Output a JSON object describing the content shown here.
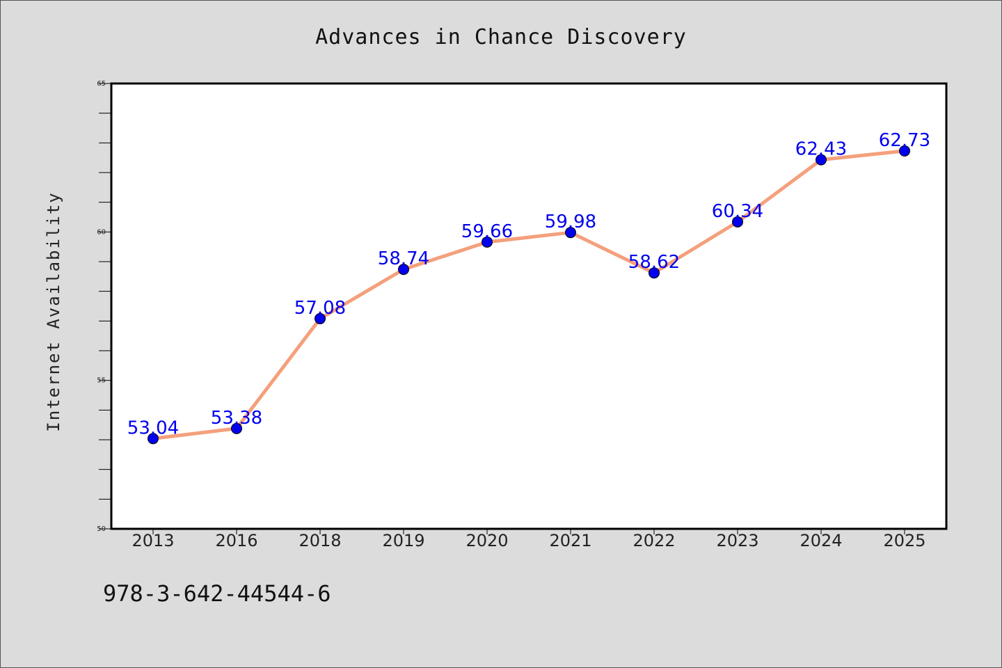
{
  "chart_data": {
    "type": "line",
    "title": "Advances in Chance Discovery",
    "xlabel": "",
    "ylabel": "Internet Availability",
    "categories": [
      "2013",
      "2016",
      "2018",
      "2019",
      "2020",
      "2021",
      "2022",
      "2023",
      "2024",
      "2025"
    ],
    "series": [
      {
        "values": [
          53.04,
          53.38,
          57.08,
          58.74,
          59.66,
          59.98,
          58.62,
          60.34,
          62.43,
          62.73
        ],
        "data_labels": [
          "53.04",
          "53.38",
          "57.08",
          "58.74",
          "59.66",
          "59.98",
          "58.62",
          "60.34",
          "62.43",
          "62.73"
        ],
        "line_color": "#f4a07c",
        "marker_color": "#0000ee",
        "label_color": "#0000ee"
      }
    ],
    "ylim": [
      50,
      65
    ],
    "yticks": [
      "50",
      "55",
      "60",
      "65"
    ],
    "grid": false,
    "legend": "none"
  },
  "footer": {
    "isbn": "978-3-642-44544-6"
  }
}
